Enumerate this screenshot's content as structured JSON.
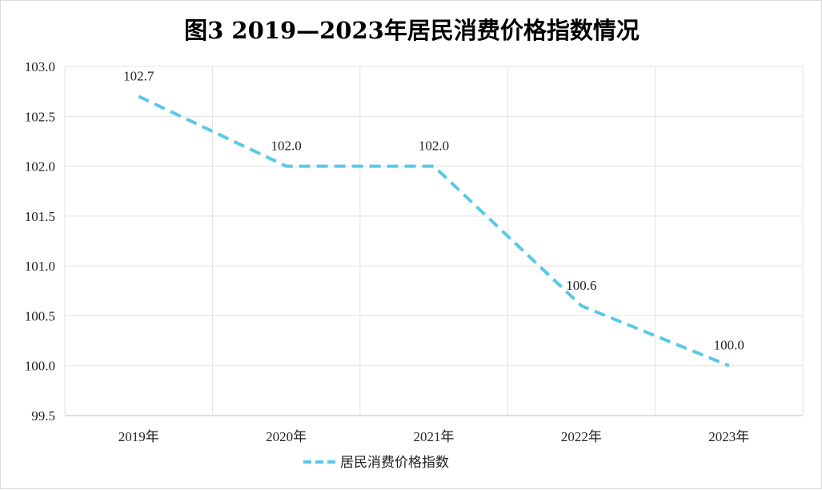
{
  "chart_data": {
    "type": "line",
    "title": "图3   2019—2023年居民消费价格指数情况",
    "categories": [
      "2019年",
      "2020年",
      "2021年",
      "2022年",
      "2023年"
    ],
    "series": [
      {
        "name": "居民消费价格指数",
        "values": [
          102.7,
          102.0,
          102.0,
          100.6,
          100.0
        ],
        "color": "#5bc8e8",
        "line_style": "dashed"
      }
    ],
    "data_labels": [
      "102.7",
      "102.0",
      "102.0",
      "100.6",
      "100.0"
    ],
    "y_ticks": [
      "99.5",
      "100.0",
      "100.5",
      "101.0",
      "101.5",
      "102.0",
      "102.5",
      "103.0"
    ],
    "ylim": [
      99.5,
      103.0
    ],
    "grid": true,
    "legend": "bottom"
  }
}
